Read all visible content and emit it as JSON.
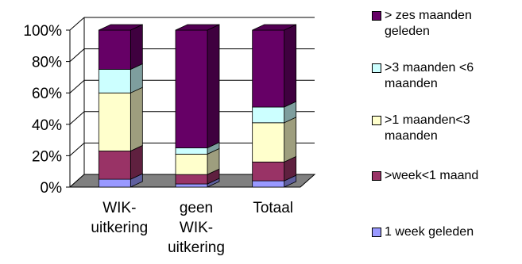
{
  "chart_data": {
    "type": "bar",
    "stacked": true,
    "percent_stacked": true,
    "three_d": true,
    "categories": [
      "WIK-uitkering",
      "geen WIK-uitkering",
      "Totaal"
    ],
    "category_lines": [
      [
        "WIK-",
        "uitkering"
      ],
      [
        "geen",
        "WIK-",
        "uitkering"
      ],
      [
        "Totaal"
      ]
    ],
    "series": [
      {
        "name": "1 week geleden",
        "color": "#9999ff",
        "values": [
          5,
          2,
          4
        ]
      },
      {
        "name": ">week<1 maand",
        "color": "#993366",
        "values": [
          18,
          6,
          12
        ]
      },
      {
        "name": ">1 maanden<3 maanden",
        "color": "#ffffcc",
        "values": [
          37,
          13,
          25
        ]
      },
      {
        "name": ">3 maanden <6 maanden",
        "color": "#ccffff",
        "values": [
          15,
          4,
          10
        ]
      },
      {
        "name": "> zes maanden geleden",
        "color": "#660066",
        "values": [
          25,
          75,
          49
        ]
      }
    ],
    "ylim": [
      0,
      100
    ],
    "y_ticks": [
      "0%",
      "20%",
      "40%",
      "60%",
      "80%",
      "100%"
    ],
    "floor_color": "#808080",
    "grid": true,
    "legend_position": "right"
  }
}
